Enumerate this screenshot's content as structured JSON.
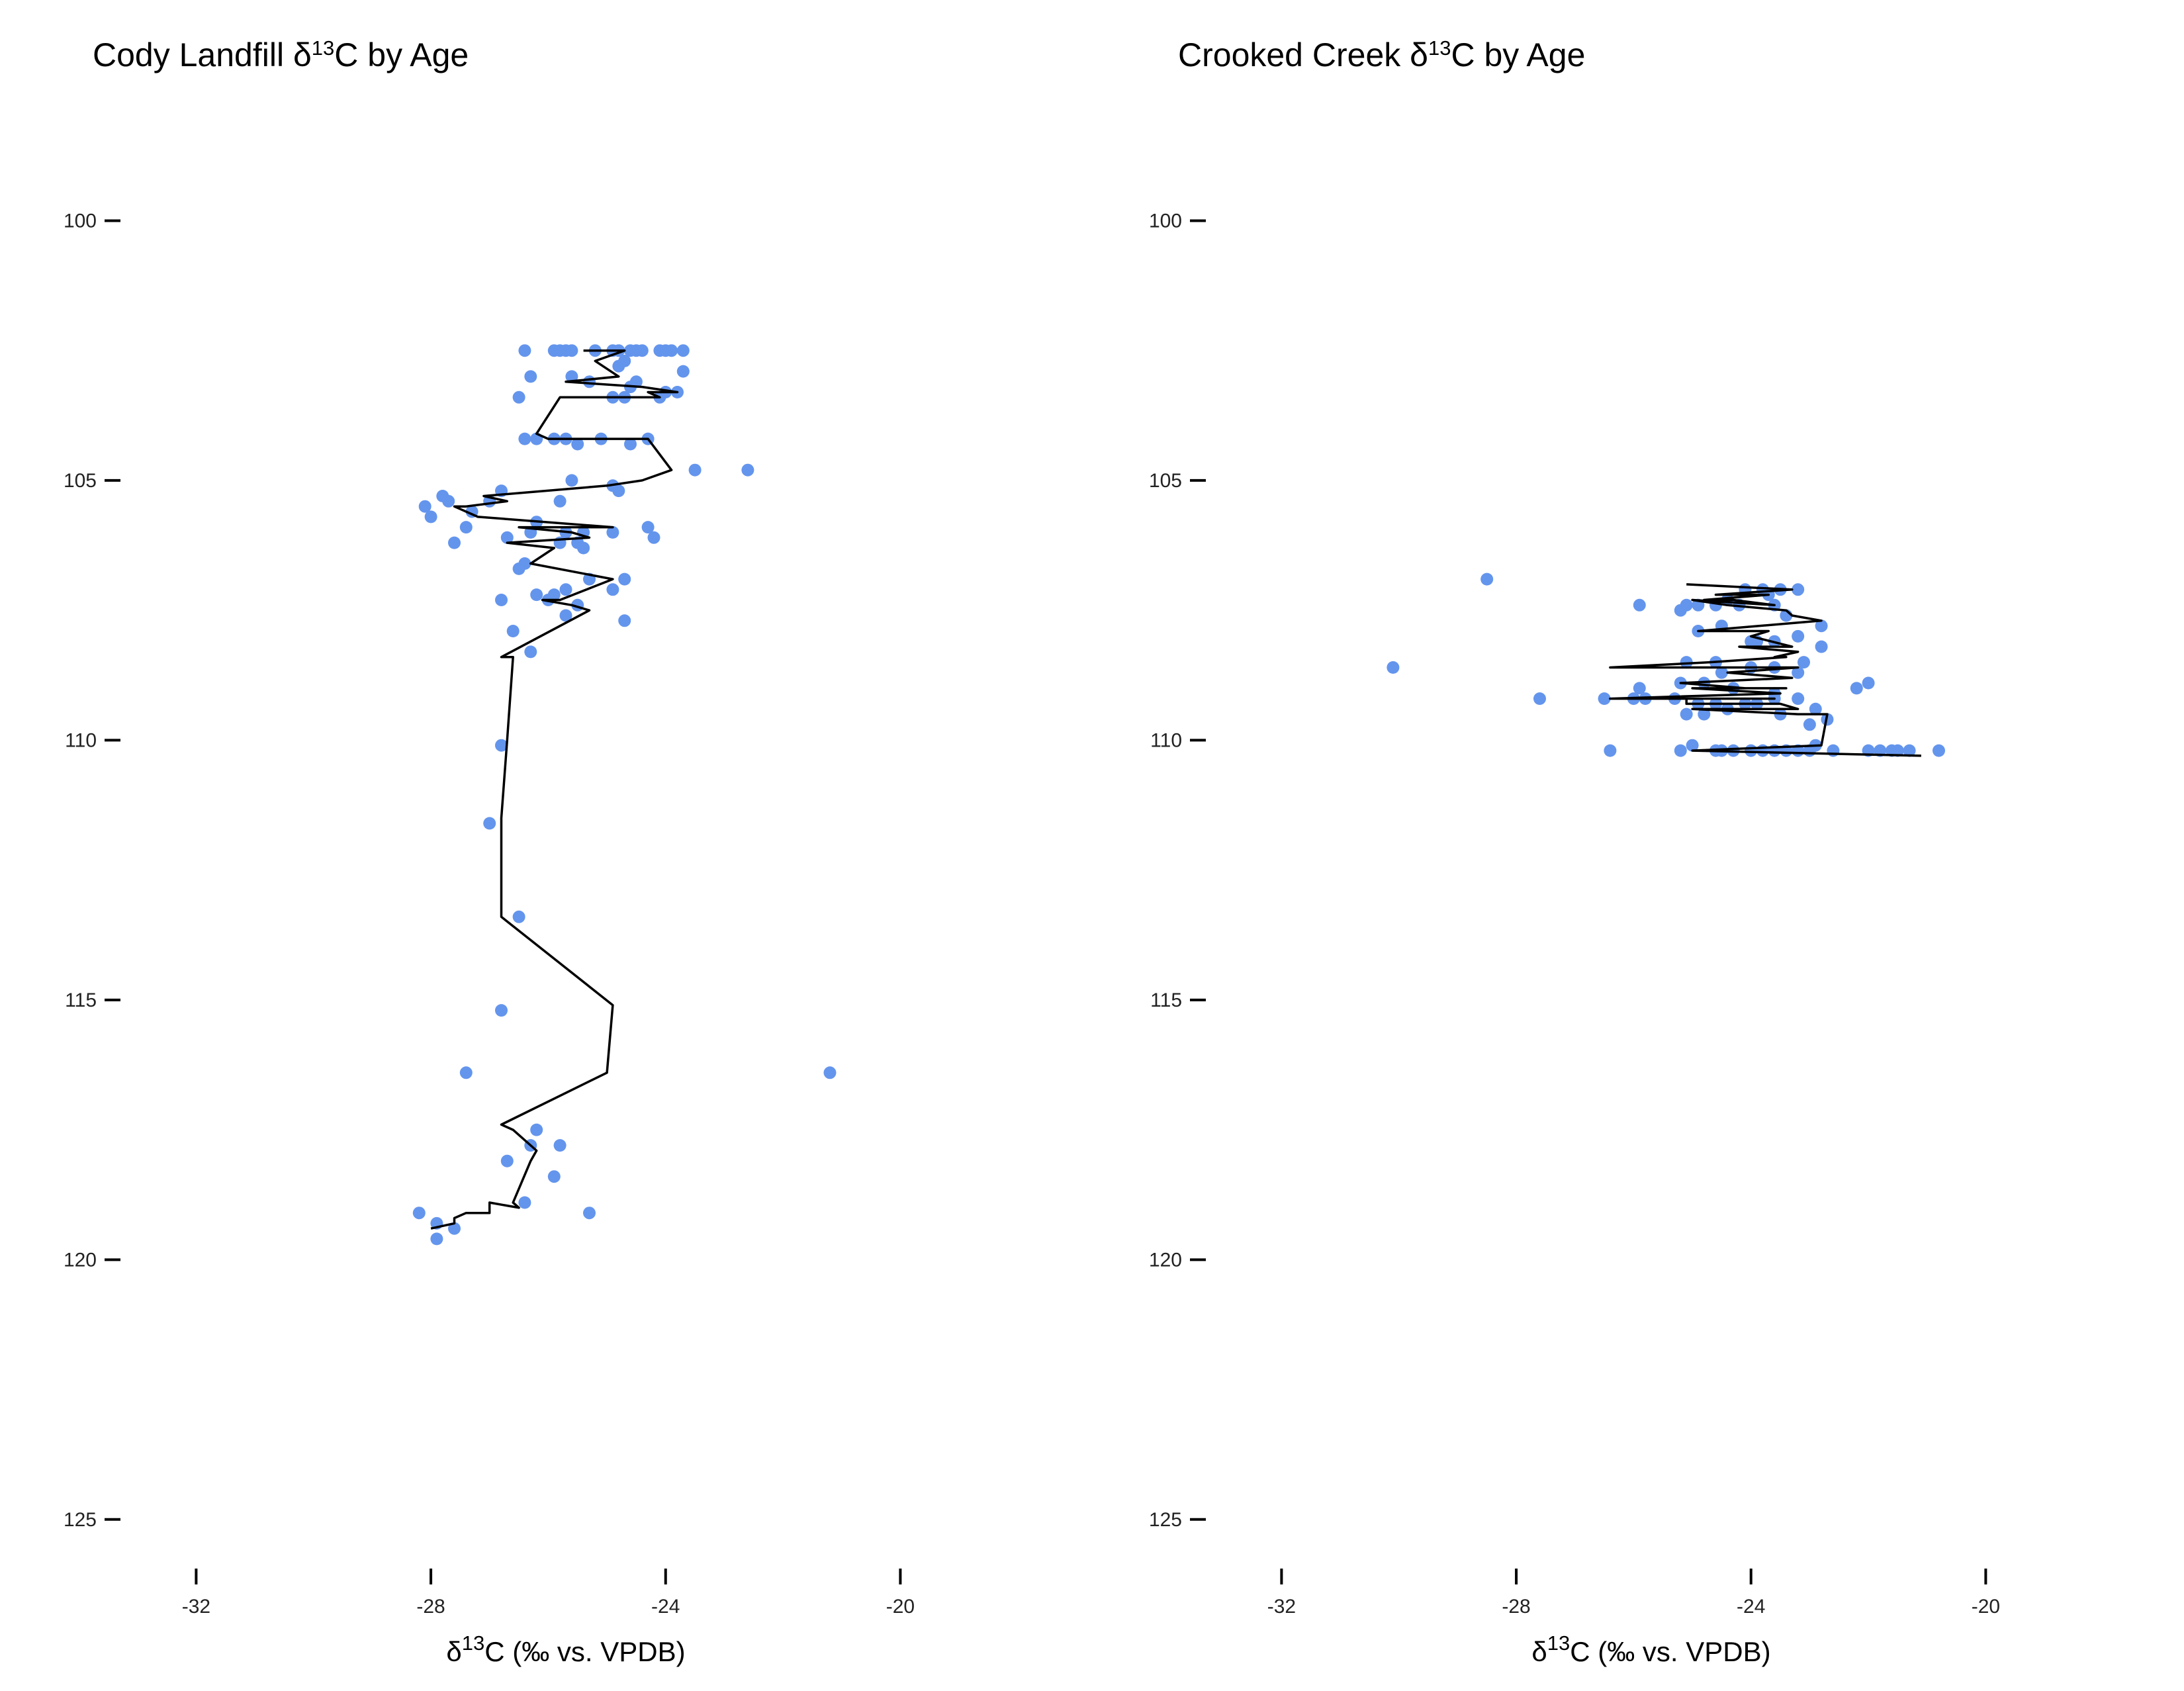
{
  "chart_data": [
    {
      "type": "scatter",
      "title_parts": [
        "Cody Landfill δ",
        "13",
        "C by Age"
      ],
      "xlabel_parts": [
        "δ",
        "13",
        "C (‰ vs. VPDB)"
      ],
      "ylabel": "",
      "xlim": [
        -33.2,
        -18.2
      ],
      "ylim": [
        126.2,
        98.3
      ],
      "xticks": [
        -32,
        -28,
        -24,
        -20
      ],
      "yticks": [
        100,
        105,
        110,
        115,
        120,
        125
      ],
      "grid": false,
      "point_color": "#6495ED",
      "line_color": "#000000",
      "points": [
        [
          -26.4,
          102.5
        ],
        [
          -25.9,
          102.5
        ],
        [
          -25.8,
          102.5
        ],
        [
          -25.7,
          102.5
        ],
        [
          -25.6,
          102.5
        ],
        [
          -25.2,
          102.5
        ],
        [
          -24.9,
          102.5
        ],
        [
          -24.8,
          102.5
        ],
        [
          -24.6,
          102.5
        ],
        [
          -24.5,
          102.5
        ],
        [
          -24.4,
          102.5
        ],
        [
          -24.1,
          102.5
        ],
        [
          -24.0,
          102.5
        ],
        [
          -23.9,
          102.5
        ],
        [
          -23.7,
          102.5
        ],
        [
          -24.7,
          102.7
        ],
        [
          -24.8,
          102.8
        ],
        [
          -23.7,
          102.9
        ],
        [
          -26.3,
          103.0
        ],
        [
          -25.6,
          103.0
        ],
        [
          -25.3,
          103.1
        ],
        [
          -24.5,
          103.1
        ],
        [
          -24.6,
          103.2
        ],
        [
          -23.8,
          103.3
        ],
        [
          -24.0,
          103.3
        ],
        [
          -24.9,
          103.4
        ],
        [
          -24.7,
          103.4
        ],
        [
          -24.1,
          103.4
        ],
        [
          -26.5,
          103.4
        ],
        [
          -26.4,
          104.2
        ],
        [
          -26.2,
          104.2
        ],
        [
          -25.9,
          104.2
        ],
        [
          -25.7,
          104.2
        ],
        [
          -25.5,
          104.3
        ],
        [
          -25.1,
          104.2
        ],
        [
          -24.3,
          104.2
        ],
        [
          -24.6,
          104.3
        ],
        [
          -23.5,
          104.8
        ],
        [
          -22.6,
          104.8
        ],
        [
          -25.6,
          105.0
        ],
        [
          -24.9,
          105.1
        ],
        [
          -24.8,
          105.2
        ],
        [
          -27.8,
          105.3
        ],
        [
          -26.8,
          105.2
        ],
        [
          -27.0,
          105.4
        ],
        [
          -25.8,
          105.4
        ],
        [
          -27.7,
          105.4
        ],
        [
          -28.1,
          105.5
        ],
        [
          -27.3,
          105.6
        ],
        [
          -28.0,
          105.7
        ],
        [
          -27.4,
          105.9
        ],
        [
          -26.2,
          105.8
        ],
        [
          -24.3,
          105.9
        ],
        [
          -24.9,
          106.0
        ],
        [
          -25.4,
          106.0
        ],
        [
          -25.7,
          106.0
        ],
        [
          -26.3,
          106.0
        ],
        [
          -26.7,
          106.1
        ],
        [
          -24.2,
          106.1
        ],
        [
          -25.8,
          106.2
        ],
        [
          -25.5,
          106.2
        ],
        [
          -25.4,
          106.3
        ],
        [
          -27.6,
          106.2
        ],
        [
          -26.4,
          106.6
        ],
        [
          -26.5,
          106.7
        ],
        [
          -25.3,
          106.9
        ],
        [
          -24.7,
          106.9
        ],
        [
          -24.9,
          107.1
        ],
        [
          -25.7,
          107.1
        ],
        [
          -25.9,
          107.2
        ],
        [
          -26.2,
          107.2
        ],
        [
          -26.0,
          107.3
        ],
        [
          -26.8,
          107.3
        ],
        [
          -25.5,
          107.4
        ],
        [
          -25.7,
          107.6
        ],
        [
          -24.7,
          107.7
        ],
        [
          -26.6,
          107.9
        ],
        [
          -26.3,
          108.3
        ],
        [
          -26.8,
          110.1
        ],
        [
          -27.0,
          111.6
        ],
        [
          -26.5,
          113.4
        ],
        [
          -26.8,
          115.2
        ],
        [
          -27.4,
          116.4
        ],
        [
          -21.2,
          116.4
        ],
        [
          -26.2,
          117.5
        ],
        [
          -26.3,
          117.8
        ],
        [
          -25.8,
          117.8
        ],
        [
          -26.7,
          118.1
        ],
        [
          -25.9,
          118.4
        ],
        [
          -26.4,
          118.9
        ],
        [
          -28.2,
          119.1
        ],
        [
          -25.3,
          119.1
        ],
        [
          -27.9,
          119.3
        ],
        [
          -27.6,
          119.4
        ],
        [
          -27.9,
          119.6
        ]
      ],
      "line": [
        [
          -25.4,
          102.5
        ],
        [
          -24.7,
          102.5
        ],
        [
          -25.2,
          102.7
        ],
        [
          -24.8,
          103.0
        ],
        [
          -25.7,
          103.1
        ],
        [
          -24.4,
          103.2
        ],
        [
          -23.8,
          103.3
        ],
        [
          -24.3,
          103.3
        ],
        [
          -24.1,
          103.4
        ],
        [
          -25.8,
          103.4
        ],
        [
          -26.2,
          104.1
        ],
        [
          -26.0,
          104.2
        ],
        [
          -24.3,
          104.2
        ],
        [
          -23.9,
          104.8
        ],
        [
          -24.4,
          105.0
        ],
        [
          -25.0,
          105.1
        ],
        [
          -27.1,
          105.3
        ],
        [
          -26.7,
          105.4
        ],
        [
          -27.4,
          105.5
        ],
        [
          -27.6,
          105.5
        ],
        [
          -27.2,
          105.7
        ],
        [
          -24.9,
          105.9
        ],
        [
          -26.5,
          105.9
        ],
        [
          -25.6,
          106.0
        ],
        [
          -25.3,
          106.1
        ],
        [
          -26.7,
          106.2
        ],
        [
          -25.9,
          106.3
        ],
        [
          -26.3,
          106.6
        ],
        [
          -24.9,
          106.9
        ],
        [
          -25.8,
          107.3
        ],
        [
          -26.1,
          107.3
        ],
        [
          -25.6,
          107.4
        ],
        [
          -25.3,
          107.5
        ],
        [
          -26.8,
          108.4
        ],
        [
          -26.6,
          108.4
        ],
        [
          -26.7,
          110.0
        ],
        [
          -26.8,
          111.5
        ],
        [
          -26.8,
          113.4
        ],
        [
          -24.9,
          115.1
        ],
        [
          -25.0,
          116.4
        ],
        [
          -26.8,
          117.4
        ],
        [
          -26.6,
          117.5
        ],
        [
          -26.2,
          117.9
        ],
        [
          -26.3,
          118.1
        ],
        [
          -26.6,
          118.9
        ],
        [
          -26.5,
          119.0
        ],
        [
          -27.0,
          118.9
        ],
        [
          -27.0,
          119.1
        ],
        [
          -27.4,
          119.1
        ],
        [
          -27.6,
          119.2
        ],
        [
          -27.6,
          119.3
        ],
        [
          -28.0,
          119.4
        ]
      ]
    },
    {
      "type": "scatter",
      "title_parts": [
        "Crooked Creek δ",
        "13",
        "C by Age"
      ],
      "xlabel_parts": [
        "δ",
        "13",
        "C (‰ vs. VPDB)"
      ],
      "ylabel": "",
      "xlim": [
        -33.2,
        -18.2
      ],
      "ylim": [
        126.2,
        98.3
      ],
      "xticks": [
        -32,
        -28,
        -24,
        -20
      ],
      "yticks": [
        100,
        105,
        110,
        115,
        120,
        125
      ],
      "grid": false,
      "point_color": "#6495ED",
      "line_color": "#000000",
      "points": [
        [
          -28.5,
          106.9
        ],
        [
          -30.1,
          108.6
        ],
        [
          -27.6,
          109.2
        ],
        [
          -26.4,
          110.2
        ],
        [
          -22.0,
          108.9
        ],
        [
          -22.2,
          109.0
        ],
        [
          -24.1,
          107.1
        ],
        [
          -23.8,
          107.1
        ],
        [
          -23.5,
          107.1
        ],
        [
          -23.2,
          107.1
        ],
        [
          -23.7,
          107.2
        ],
        [
          -24.4,
          107.3
        ],
        [
          -24.9,
          107.4
        ],
        [
          -25.1,
          107.4
        ],
        [
          -25.2,
          107.5
        ],
        [
          -24.6,
          107.4
        ],
        [
          -24.2,
          107.4
        ],
        [
          -23.6,
          107.4
        ],
        [
          -25.9,
          107.4
        ],
        [
          -23.4,
          107.6
        ],
        [
          -22.8,
          107.8
        ],
        [
          -24.9,
          107.9
        ],
        [
          -24.5,
          107.8
        ],
        [
          -23.9,
          108.1
        ],
        [
          -24.0,
          108.1
        ],
        [
          -23.6,
          108.1
        ],
        [
          -23.2,
          108.0
        ],
        [
          -22.8,
          108.2
        ],
        [
          -23.1,
          108.5
        ],
        [
          -24.6,
          108.5
        ],
        [
          -25.1,
          108.5
        ],
        [
          -23.6,
          108.6
        ],
        [
          -24.0,
          108.6
        ],
        [
          -24.5,
          108.7
        ],
        [
          -23.2,
          108.7
        ],
        [
          -25.2,
          108.9
        ],
        [
          -24.8,
          108.9
        ],
        [
          -25.9,
          109.0
        ],
        [
          -24.3,
          109.0
        ],
        [
          -23.6,
          109.1
        ],
        [
          -26.0,
          109.2
        ],
        [
          -26.5,
          109.2
        ],
        [
          -25.8,
          109.2
        ],
        [
          -25.3,
          109.2
        ],
        [
          -24.9,
          109.3
        ],
        [
          -24.6,
          109.3
        ],
        [
          -24.1,
          109.3
        ],
        [
          -23.9,
          109.3
        ],
        [
          -23.6,
          109.2
        ],
        [
          -23.2,
          109.2
        ],
        [
          -24.4,
          109.4
        ],
        [
          -25.1,
          109.5
        ],
        [
          -22.9,
          109.4
        ],
        [
          -24.8,
          109.5
        ],
        [
          -23.5,
          109.5
        ],
        [
          -22.7,
          109.6
        ],
        [
          -23.0,
          109.7
        ],
        [
          -22.9,
          110.1
        ],
        [
          -25.2,
          110.2
        ],
        [
          -25.0,
          110.1
        ],
        [
          -24.6,
          110.2
        ],
        [
          -24.5,
          110.2
        ],
        [
          -24.0,
          110.2
        ],
        [
          -23.6,
          110.2
        ],
        [
          -23.4,
          110.2
        ],
        [
          -23.2,
          110.2
        ],
        [
          -23.0,
          110.2
        ],
        [
          -22.6,
          110.2
        ],
        [
          -22.0,
          110.2
        ],
        [
          -21.8,
          110.2
        ],
        [
          -21.6,
          110.2
        ],
        [
          -21.5,
          110.2
        ],
        [
          -21.3,
          110.2
        ],
        [
          -20.8,
          110.2
        ],
        [
          -24.3,
          110.2
        ],
        [
          -23.8,
          110.2
        ]
      ],
      "line": [
        [
          -25.1,
          107.0
        ],
        [
          -23.3,
          107.1
        ],
        [
          -24.6,
          107.2
        ],
        [
          -23.7,
          107.2
        ],
        [
          -24.8,
          107.3
        ],
        [
          -24.3,
          107.3
        ],
        [
          -23.6,
          107.4
        ],
        [
          -25.0,
          107.3
        ],
        [
          -24.4,
          107.4
        ],
        [
          -23.4,
          107.5
        ],
        [
          -23.3,
          107.6
        ],
        [
          -22.8,
          107.7
        ],
        [
          -24.9,
          107.9
        ],
        [
          -23.7,
          107.9
        ],
        [
          -24.0,
          108.0
        ],
        [
          -23.3,
          108.2
        ],
        [
          -24.2,
          108.2
        ],
        [
          -23.2,
          108.3
        ],
        [
          -23.6,
          108.4
        ],
        [
          -23.4,
          108.4
        ],
        [
          -24.7,
          108.5
        ],
        [
          -26.4,
          108.6
        ],
        [
          -23.2,
          108.6
        ],
        [
          -24.4,
          108.7
        ],
        [
          -23.3,
          108.8
        ],
        [
          -25.2,
          108.9
        ],
        [
          -24.1,
          109.0
        ],
        [
          -23.4,
          109.0
        ],
        [
          -25.0,
          109.0
        ],
        [
          -23.5,
          109.1
        ],
        [
          -26.4,
          109.2
        ],
        [
          -23.6,
          109.2
        ],
        [
          -25.1,
          109.2
        ],
        [
          -25.1,
          109.3
        ],
        [
          -23.5,
          109.3
        ],
        [
          -23.2,
          109.4
        ],
        [
          -25.0,
          109.4
        ],
        [
          -23.2,
          109.5
        ],
        [
          -22.7,
          109.5
        ],
        [
          -22.8,
          110.1
        ],
        [
          -25.0,
          110.2
        ],
        [
          -21.1,
          110.3
        ]
      ]
    }
  ]
}
